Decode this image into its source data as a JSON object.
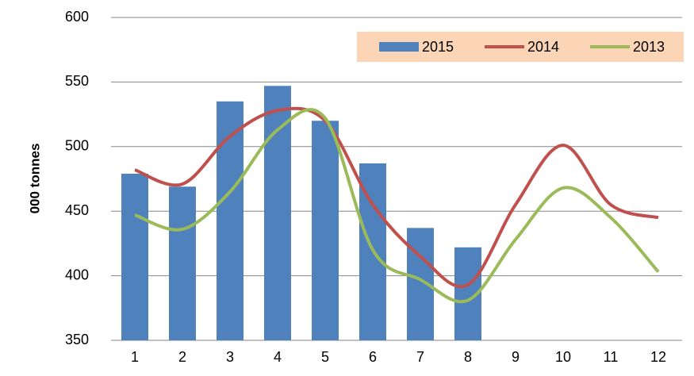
{
  "chart_data": {
    "type": "bar_line",
    "y_label": "000 tonnes",
    "categories": [
      "1",
      "2",
      "3",
      "4",
      "5",
      "6",
      "7",
      "8",
      "9",
      "10",
      "11",
      "12"
    ],
    "series": [
      {
        "name": "2015",
        "type": "bar",
        "color": "#4f81bd",
        "values": [
          479,
          469,
          535,
          547,
          520,
          487,
          437,
          422,
          null,
          null,
          null,
          null
        ]
      },
      {
        "name": "2014",
        "type": "line",
        "color": "#c0504d",
        "values": [
          482,
          471,
          508,
          528,
          520,
          455,
          415,
          393,
          455,
          501,
          455,
          445
        ]
      },
      {
        "name": "2013",
        "type": "line",
        "color": "#9bbb59",
        "values": [
          447,
          436,
          465,
          513,
          522,
          420,
          397,
          381,
          428,
          468,
          445,
          403
        ]
      }
    ],
    "ylim": [
      350,
      600
    ],
    "yticks": [
      350,
      400,
      450,
      500,
      550,
      600
    ],
    "grid": true,
    "legend": "top-right"
  }
}
